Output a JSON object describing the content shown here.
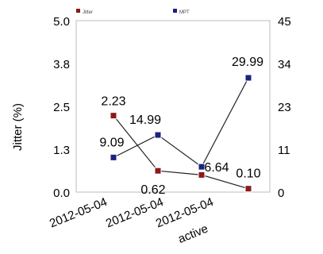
{
  "chart_data": {
    "type": "line",
    "ylabel": "Jitter (%)",
    "xlabel": "active",
    "categories": [
      "2012-05-04",
      "2012-05-04",
      "2012-05-04",
      ""
    ],
    "left_axis": {
      "ylim": [
        0,
        5.0
      ],
      "ticks": [
        "0.0",
        "1.3",
        "2.5",
        "3.8",
        "5.0"
      ]
    },
    "right_axis": {
      "ylim": [
        0,
        45
      ],
      "ticks": [
        "0",
        "11",
        "23",
        "34",
        "45"
      ]
    },
    "grid": false,
    "legend_position": "top",
    "series": [
      {
        "name": "Jitter",
        "axis": "left",
        "color": "#8b1a1a",
        "values": [
          2.23,
          0.62,
          0.5,
          0.1
        ],
        "labels": [
          "2.23",
          "0.62",
          "",
          "0.10"
        ]
      },
      {
        "name": "MPT",
        "axis": "right",
        "color": "#1a237e",
        "values": [
          9.09,
          14.99,
          6.64,
          29.99
        ],
        "labels": [
          "9.09",
          "14.99",
          "6.64",
          "29.99"
        ]
      }
    ]
  }
}
